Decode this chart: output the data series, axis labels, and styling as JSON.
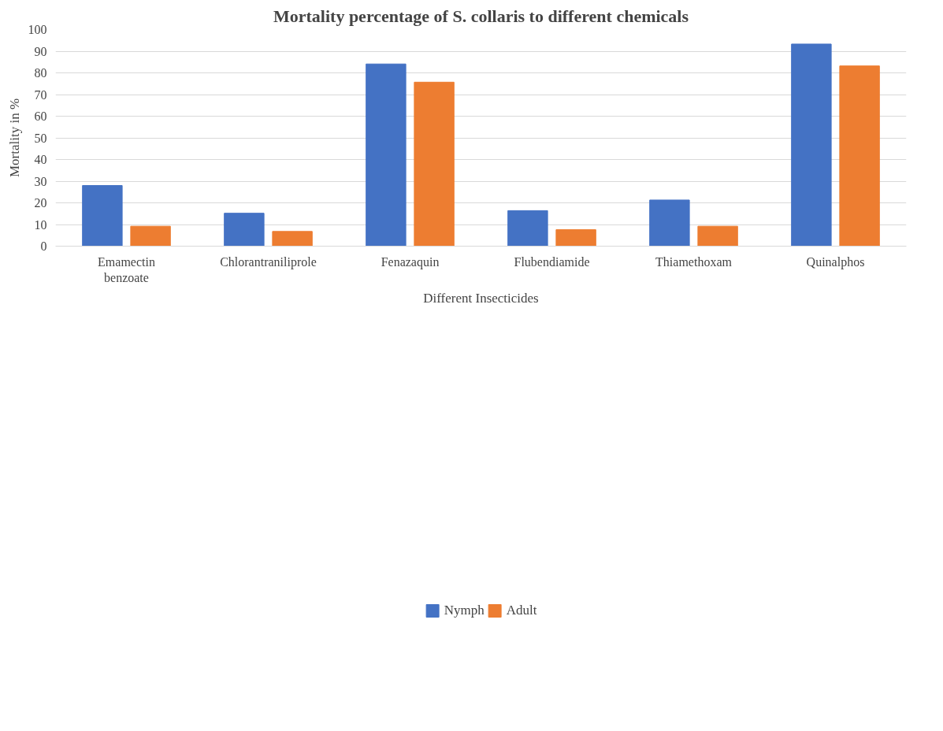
{
  "chart_data": {
    "type": "bar",
    "title": "Mortality percentage of S. collaris to different chemicals",
    "xlabel": "Different Insecticides",
    "ylabel": "Mortality in %",
    "categories": [
      "Emamectin benzoate",
      "Chlorantraniliprole",
      "Fenazaquin",
      "Flubendiamide",
      "Thiamethoxam",
      "Quinalphos"
    ],
    "series": [
      {
        "name": "Nymph",
        "color": "#4472c4",
        "values": [
          28.0,
          15.2,
          84.1,
          16.4,
          21.3,
          93.3
        ]
      },
      {
        "name": "Adult",
        "color": "#ed7d31",
        "values": [
          9.2,
          6.8,
          75.7,
          7.6,
          9.2,
          83.2
        ]
      }
    ],
    "ylim": [
      0,
      100
    ],
    "yticks": [
      0,
      10,
      20,
      30,
      40,
      50,
      60,
      70,
      80,
      90,
      100
    ],
    "grid": "y",
    "legend": "bottom"
  }
}
